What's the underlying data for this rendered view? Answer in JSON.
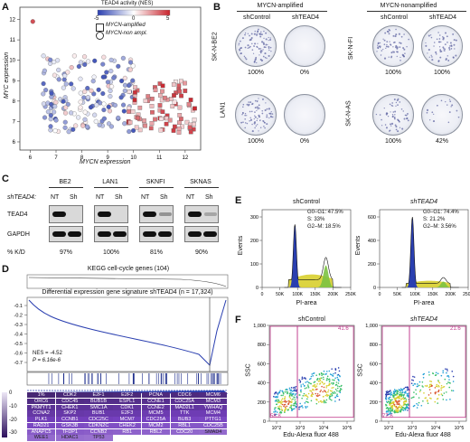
{
  "panels": [
    "A",
    "B",
    "C",
    "D",
    "E",
    "F"
  ],
  "panel_a": {
    "colorbar_title": "TEAD4 activity (NES)",
    "colorbar_ticks": [
      "-5",
      "0",
      "5"
    ],
    "legend": [
      "MYCN-amplified",
      "MYCN-non ampl."
    ],
    "xlabel": "MYCN expression",
    "ylabel": "MYC expression",
    "xticks": [
      "6",
      "7",
      "8",
      "9",
      "10",
      "11",
      "12"
    ],
    "yticks": [
      "6",
      "7",
      "8",
      "9",
      "10",
      "11",
      "12"
    ]
  },
  "panel_b": {
    "group_amp": "MYCN-amplified",
    "group_nonamp": "MYCN-nonamplified",
    "cond_ctrl": "shControl",
    "cond_kd": "shTEAD4",
    "cells_amp": [
      "SK-N-BE2",
      "LAN1"
    ],
    "cells_nonamp": [
      "SK-N-FI",
      "SK-N-AS"
    ],
    "pct_amp": [
      [
        "100%",
        "0%"
      ],
      [
        "100%",
        "0%"
      ]
    ],
    "pct_nonamp": [
      [
        "100%",
        "100%"
      ],
      [
        "100%",
        "42%"
      ]
    ]
  },
  "panel_c": {
    "cell_lines": [
      "BE2",
      "LAN1",
      "SKNFI",
      "SKNAS"
    ],
    "row_label": "shTEAD4:",
    "lanes": [
      "NT",
      "Sh"
    ],
    "proteins": [
      "TEAD4",
      "GAPDH"
    ],
    "kd_label": "% K/D",
    "kd_values": [
      "97%",
      "100%",
      "81%",
      "90%"
    ]
  },
  "panel_d": {
    "kegg_label": "KEGG cell-cycle genes (104)",
    "signature_label": "Differential expression gene signature shTEAD4 (n = 17,324)",
    "nes": "NES = -4.52",
    "p": "P = 6.16e-6",
    "yticks": [
      "-0.1",
      "-0.2",
      "-0.3",
      "-0.4",
      "-0.5",
      "-0.6",
      "-0.7"
    ],
    "heat_ticks": [
      "0",
      "-10",
      "-20",
      "-30"
    ],
    "genes": [
      [
        "1%",
        "CDK2",
        "E2F1",
        "E2F2",
        "PCNA",
        "CDC6",
        "MCM6"
      ],
      [
        "ORC6",
        "CDC45",
        "BUB1B",
        "ESPL1",
        "CCNE1",
        "CDC25A",
        "MCM3"
      ],
      [
        "PKMYT1",
        "CHEK1",
        "SMC1A",
        "CDK1",
        "CCNE2",
        "MAD2L1",
        "YWHAQ"
      ],
      [
        "CCNA2",
        "SKP2",
        "BUB1",
        "E2F3",
        "MCM5",
        "TTK",
        "MCM4"
      ],
      [
        "PLK1",
        "CCNB1",
        "CDC25C",
        "MCM7",
        "CDC25A",
        "BUB3",
        "PTTG1"
      ],
      [
        "RAD21",
        "GSK3B",
        "CDKN2C",
        "CHEK2",
        "MCM2",
        "RBL1",
        "CDC25B"
      ],
      [
        "ANAPC5",
        "TFDP1",
        "CCNB2",
        "RB1",
        "RBL2",
        "CDC20",
        "SMAD4"
      ],
      [
        "WEE1",
        "HDAC1",
        "TP53",
        "",
        "",
        "",
        ""
      ]
    ]
  },
  "panel_e": {
    "plots": [
      {
        "title": "shControl",
        "g0g1": "G0–G1: 47.5%",
        "s": "S: 33%",
        "g2m": "G2–M: 18.5%"
      },
      {
        "title": "shTEAD4",
        "g0g1": "G0–G1: 74.4%",
        "s": "S: 21.2%",
        "g2m": "G2–M: 3.56%"
      }
    ],
    "ylabel": "Events",
    "xlabel": "PI-area",
    "xticks": [
      "0",
      "50K",
      "100K",
      "150K",
      "200K",
      "250K"
    ],
    "yticks_left": [
      "0",
      "100",
      "200",
      "300"
    ],
    "yticks_right": [
      "0",
      "200",
      "400",
      "600"
    ]
  },
  "panel_f": {
    "plots": [
      {
        "title": "shControl",
        "gate_top": "41.6",
        "gate_bottom": "58.8"
      },
      {
        "title": "shTEAD4",
        "gate_top": "21.6",
        "gate_bottom": "77.6"
      }
    ],
    "ylabel": "SSC",
    "xlabel": "Edu-Alexa fluor 488",
    "yticks": [
      "0",
      "200",
      "400",
      "600",
      "800",
      "1,000"
    ],
    "xticks": [
      "10^2",
      "10^3",
      "10^4",
      "10^5"
    ]
  },
  "colors": {
    "blue": "#2a3fb0",
    "red": "#c8232c",
    "purple_dark": "#3a1a6e",
    "purple_light": "#b9a6d8",
    "green": "#7cc242",
    "yellow": "#d8cf2e",
    "magenta": "#c03a8c"
  }
}
